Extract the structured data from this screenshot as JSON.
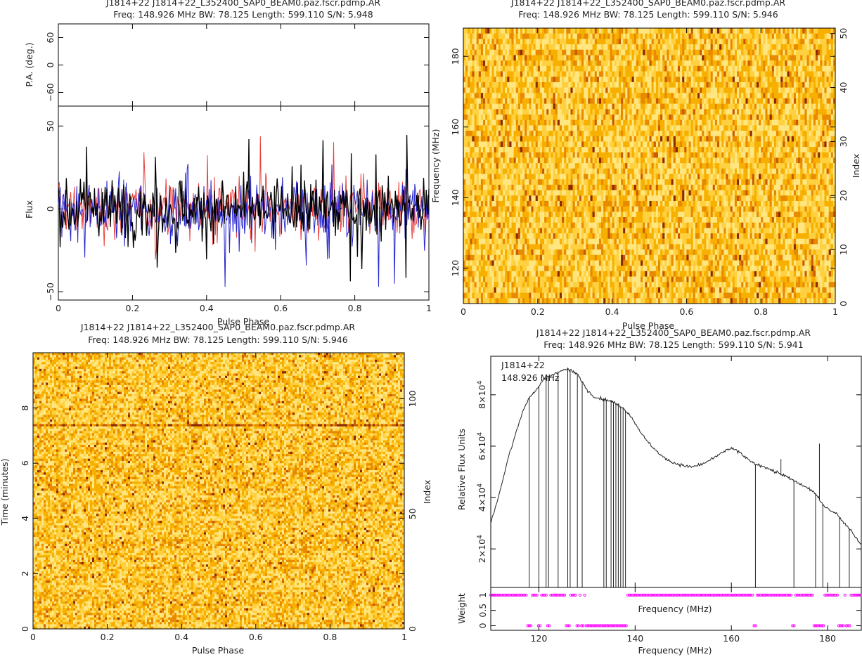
{
  "chart_data": [
    {
      "id": "profile",
      "type": "line",
      "title": "J1814+22 J1814+22_L352400_SAP0_BEAM0.paz.fscr.pdmp.AR",
      "subtitle": "Freq: 148.926 MHz BW: 78.125 Length: 599.110 S/N: 5.948",
      "xlabel": "Pulse Phase",
      "ylabel": "Flux",
      "pa_ylabel": "P.A. (deg.)",
      "xlim": [
        0,
        1
      ],
      "ylim": [
        -55,
        62
      ],
      "pa_ylim": [
        -90,
        90
      ],
      "xticks": [
        "0",
        "0.2",
        "0.4",
        "0.6",
        "0.8",
        "1"
      ],
      "yticks": [
        "−50",
        "0",
        "50"
      ],
      "pa_yticks": [
        "−60",
        "0",
        "60"
      ],
      "series_colors": [
        "#e8403c",
        "#2424cc",
        "#000000"
      ],
      "noise_range": [
        -47,
        55
      ]
    },
    {
      "id": "freq_phase",
      "type": "heatmap",
      "title": "J1814+22 J1814+22_L352400_SAP0_BEAM0.paz.fscr.pdmp.AR",
      "subtitle": "Freq: 148.926 MHz BW: 78.125 Length: 599.110 S/N: 5.946",
      "xlabel": "Pulse Phase",
      "ylabel": "Frequency (MHz)",
      "y2label": "Index",
      "xlim": [
        0,
        1
      ],
      "ylim": [
        110,
        188
      ],
      "y2lim": [
        0,
        51
      ],
      "xticks": [
        "0",
        "0.2",
        "0.4",
        "0.6",
        "0.8",
        "1"
      ],
      "yticks": [
        "120",
        "140",
        "160",
        "180"
      ],
      "y2ticks": [
        "0",
        "10",
        "20",
        "30",
        "40",
        "50"
      ],
      "colormap": [
        "#ffe680",
        "#ffd040",
        "#f7b000",
        "#e88a00",
        "#c85a00",
        "#8a2a00"
      ]
    },
    {
      "id": "time_phase",
      "type": "heatmap",
      "title": "J1814+22 J1814+22_L352400_SAP0_BEAM0.paz.fscr.pdmp.AR",
      "subtitle": "Freq: 148.926 MHz BW: 78.125 Length: 599.110 S/N: 5.946",
      "xlabel": "Pulse Phase",
      "ylabel": "Time (minutes)",
      "y2label": "Index",
      "xlim": [
        0,
        1
      ],
      "ylim": [
        0,
        10
      ],
      "y2lim": [
        0,
        120
      ],
      "xticks": [
        "0",
        "0.2",
        "0.4",
        "0.6",
        "0.8",
        "1"
      ],
      "yticks": [
        "0",
        "2",
        "4",
        "6",
        "8"
      ],
      "y2ticks": [
        "0",
        "50",
        "100"
      ],
      "colormap": [
        "#ffe680",
        "#ffd040",
        "#f7b000",
        "#e88a00",
        "#c85a00",
        "#8a2a00"
      ]
    },
    {
      "id": "bandpass",
      "type": "line",
      "title": "J1814+22 J1814+22_L352400_SAP0_BEAM0.paz.fscr.pdmp.AR",
      "subtitle": "Freq: 148.926 MHz BW: 78.125 Length: 599.110 S/N: 5.941",
      "annotation_lines": [
        "J1814+22",
        "148.926 MHz"
      ],
      "xlabel": "Frequency (MHz)",
      "xlabel_inner": "Frequency (MHz)",
      "ylabel": "Relative Flux Units",
      "weight_ylabel": "Weight",
      "xlim": [
        110,
        187
      ],
      "ylim": [
        5000,
        95000
      ],
      "xticks": [
        "120",
        "140",
        "160",
        "180"
      ],
      "yticks": [
        {
          "base": "2×10",
          "exp": "4"
        },
        {
          "base": "4×10",
          "exp": "4"
        },
        {
          "base": "6×10",
          "exp": "4"
        },
        {
          "base": "8×10",
          "exp": "4"
        }
      ],
      "weight_yticks": [
        "0",
        "0.5",
        "1"
      ],
      "weight_color": "#ff00ff",
      "x": [
        110,
        112,
        114,
        116,
        117,
        118,
        119,
        120,
        121,
        122,
        123,
        124,
        125,
        126,
        127,
        128,
        129,
        130,
        131,
        132,
        133,
        134,
        135,
        136,
        137,
        138,
        139,
        140,
        141,
        142,
        143,
        144,
        145,
        146,
        147,
        148,
        149,
        150,
        151,
        152,
        153,
        154,
        155,
        156,
        157,
        158,
        159,
        160,
        161,
        162,
        163,
        164,
        165,
        166,
        167,
        168,
        169,
        170,
        171,
        172,
        173,
        174,
        175,
        176,
        177,
        178,
        179,
        180,
        181,
        182,
        183,
        184,
        185,
        186,
        187
      ],
      "y": [
        30000,
        43000,
        58000,
        70000,
        75000,
        79000,
        81000,
        83000,
        86000,
        87000,
        88000,
        89000,
        89500,
        90000,
        89000,
        88000,
        85000,
        82000,
        80000,
        79000,
        78500,
        78000,
        77500,
        76500,
        75500,
        74000,
        72000,
        69000,
        66000,
        63000,
        61000,
        59000,
        57000,
        55500,
        54500,
        53500,
        53000,
        52500,
        52000,
        52000,
        52500,
        53000,
        54000,
        55000,
        56000,
        57500,
        58500,
        59000,
        58500,
        57000,
        55500,
        54000,
        53000,
        52500,
        52000,
        51000,
        50000,
        49500,
        48500,
        47500,
        46500,
        45500,
        44500,
        43500,
        42500,
        40000,
        37000,
        36000,
        34500,
        33500,
        31000,
        29000,
        27000,
        24000,
        22000
      ],
      "dropout_channels": [
        118,
        120,
        121.5,
        122,
        124,
        126,
        126.5,
        128,
        129,
        133.5,
        134,
        135,
        135.5,
        136,
        136.5,
        137,
        137.5,
        138,
        165,
        173,
        177.5,
        179,
        182.5,
        184.5
      ],
      "spike_channels": [
        {
          "x": 170.3,
          "y": 55000
        },
        {
          "x": 178.3,
          "y": 61000
        }
      ],
      "zero_weight_channels": [
        118,
        120,
        122,
        126,
        128,
        129,
        130,
        130.6,
        131,
        131.6,
        132,
        132.6,
        133,
        133.6,
        134,
        134.6,
        135,
        135.6,
        136,
        136.6,
        137,
        137.6,
        138,
        165,
        173,
        177.5,
        178,
        178.5,
        179,
        182.5,
        183.2,
        184,
        184.5
      ]
    }
  ]
}
